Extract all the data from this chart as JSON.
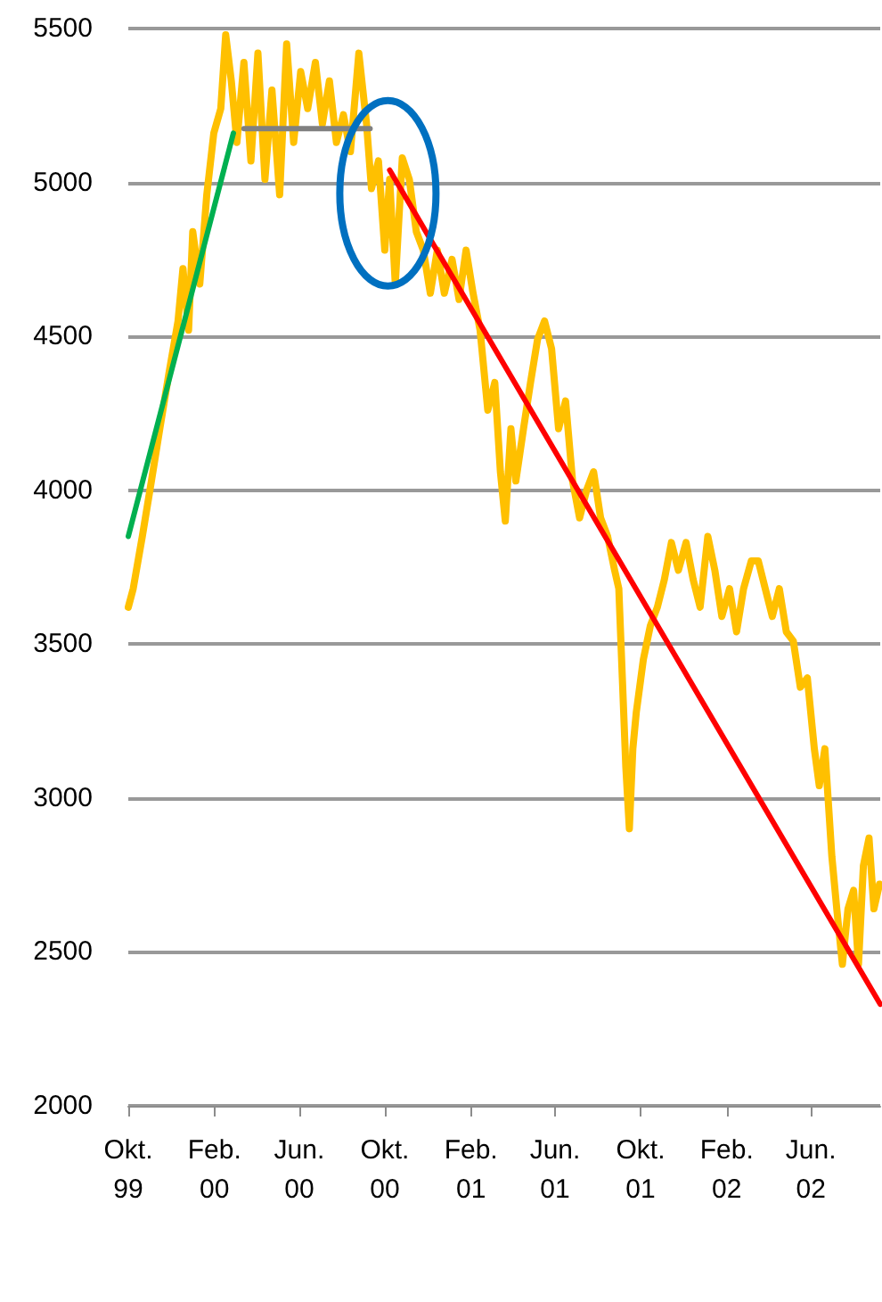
{
  "chart_data": {
    "type": "line",
    "xlim": [
      "1999-10-01",
      "2002-09-08"
    ],
    "ylim": [
      2000,
      5500
    ],
    "yticks": [
      2000,
      2500,
      3000,
      3500,
      4000,
      4500,
      5000,
      5500
    ],
    "xticks": [
      {
        "value": "1999-10-01",
        "label": "Okt.\n99"
      },
      {
        "value": "2000-02-01",
        "label": "Feb.\n00"
      },
      {
        "value": "2000-06-01",
        "label": "Jun.\n00"
      },
      {
        "value": "2000-10-01",
        "label": "Okt.\n00"
      },
      {
        "value": "2001-02-01",
        "label": "Feb.\n01"
      },
      {
        "value": "2001-06-01",
        "label": "Jun.\n01"
      },
      {
        "value": "2001-10-01",
        "label": "Okt.\n01"
      },
      {
        "value": "2002-02-01",
        "label": "Feb.\n02"
      },
      {
        "value": "2002-06-01",
        "label": "Jun.\n02"
      }
    ],
    "grid": "y",
    "marker": "none",
    "line_style": "solid",
    "series": [
      {
        "color": "#ffc000",
        "x": [
          "1999-10-01",
          "1999-10-08",
          "1999-10-21",
          "1999-11-03",
          "1999-11-15",
          "1999-11-28",
          "1999-12-11",
          "1999-12-18",
          "1999-12-26",
          "2000-01-01",
          "2000-01-11",
          "2000-01-21",
          "2000-01-31",
          "2000-02-10",
          "2000-02-17",
          "2000-02-25",
          "2000-03-04",
          "2000-03-14",
          "2000-03-24",
          "2000-04-03",
          "2000-04-13",
          "2000-04-23",
          "2000-05-04",
          "2000-05-14",
          "2000-05-24",
          "2000-06-03",
          "2000-06-13",
          "2000-06-24",
          "2000-07-04",
          "2000-07-14",
          "2000-07-24",
          "2000-08-03",
          "2000-08-13",
          "2000-08-25",
          "2000-09-05",
          "2000-09-12",
          "2000-09-22",
          "2000-10-01",
          "2000-10-08",
          "2000-10-16",
          "2000-10-26",
          "2000-11-05",
          "2000-11-15",
          "2000-11-25",
          "2000-12-05",
          "2000-12-15",
          "2000-12-25",
          "2001-01-05",
          "2001-01-15",
          "2001-01-25",
          "2001-02-04",
          "2001-02-14",
          "2001-02-25",
          "2001-03-07",
          "2001-03-15",
          "2001-03-22",
          "2001-03-30",
          "2001-04-06",
          "2001-04-17",
          "2001-04-27",
          "2001-05-07",
          "2001-05-17",
          "2001-05-27",
          "2001-06-06",
          "2001-06-16",
          "2001-06-26",
          "2001-07-06",
          "2001-07-16",
          "2001-07-26",
          "2001-08-05",
          "2001-08-15",
          "2001-08-25",
          "2001-08-31",
          "2001-09-05",
          "2001-09-10",
          "2001-09-15",
          "2001-09-20",
          "2001-09-25",
          "2001-10-05",
          "2001-10-15",
          "2001-10-25",
          "2001-11-04",
          "2001-11-14",
          "2001-11-24",
          "2001-12-05",
          "2001-12-15",
          "2001-12-25",
          "2002-01-05",
          "2002-01-15",
          "2002-01-25",
          "2002-02-05",
          "2002-02-15",
          "2002-02-25",
          "2002-03-08",
          "2002-03-18",
          "2002-03-28",
          "2002-04-07",
          "2002-04-17",
          "2002-04-27",
          "2002-05-07",
          "2002-05-17",
          "2002-05-27",
          "2002-06-06",
          "2002-06-13",
          "2002-06-21",
          "2002-07-01",
          "2002-07-08",
          "2002-07-16",
          "2002-07-24",
          "2002-08-01",
          "2002-08-08",
          "2002-08-15",
          "2002-08-23",
          "2002-08-30",
          "2002-09-07"
        ],
        "values": [
          3620,
          3680,
          3850,
          4030,
          4200,
          4380,
          4550,
          4720,
          4520,
          4840,
          4670,
          4960,
          5160,
          5240,
          5480,
          5330,
          5130,
          5390,
          5070,
          5420,
          5010,
          5300,
          4960,
          5450,
          5130,
          5360,
          5240,
          5390,
          5190,
          5330,
          5130,
          5220,
          5100,
          5420,
          5190,
          4980,
          5070,
          4780,
          5010,
          4670,
          5080,
          5010,
          4840,
          4780,
          4640,
          4780,
          4640,
          4750,
          4620,
          4780,
          4640,
          4520,
          4260,
          4350,
          4060,
          3900,
          4200,
          4030,
          4200,
          4350,
          4490,
          4550,
          4460,
          4200,
          4290,
          4030,
          3910,
          4000,
          4060,
          3910,
          3850,
          3740,
          3680,
          3390,
          3100,
          2900,
          3160,
          3280,
          3450,
          3560,
          3620,
          3710,
          3830,
          3740,
          3830,
          3710,
          3620,
          3850,
          3740,
          3590,
          3680,
          3540,
          3680,
          3770,
          3770,
          3680,
          3590,
          3680,
          3540,
          3510,
          3360,
          3390,
          3160,
          3040,
          3160,
          2810,
          2640,
          2460,
          2640,
          2700,
          2460,
          2780,
          2870,
          2640,
          2720
        ]
      },
      {
        "color": "#00b050",
        "x": [
          "1999-10-01",
          "2000-02-28"
        ],
        "values": [
          3850,
          5160
        ]
      },
      {
        "color": "#808080",
        "x": [
          "2000-03-14",
          "2000-09-10"
        ],
        "values": [
          5175,
          5175
        ]
      },
      {
        "color": "#ff0000",
        "x": [
          "2000-10-08",
          "2002-09-08"
        ],
        "values": [
          5040,
          2330
        ]
      }
    ]
  }
}
